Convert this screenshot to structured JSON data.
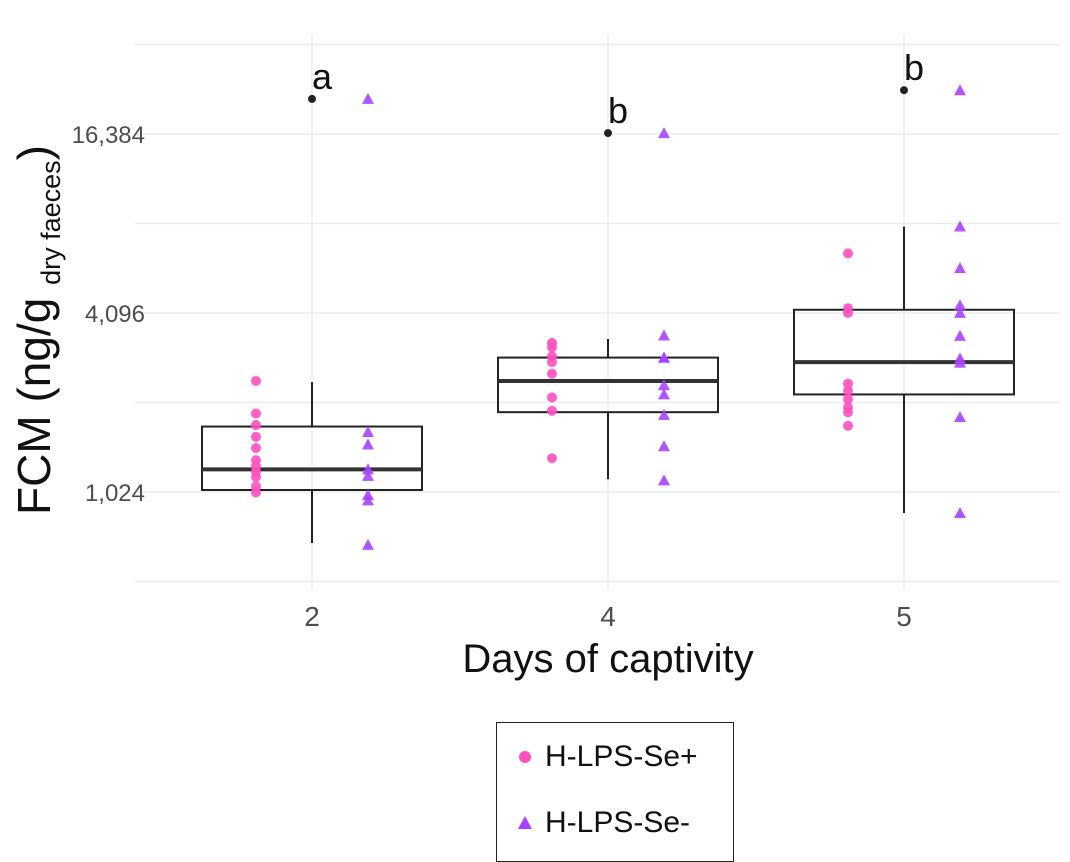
{
  "chart_data": {
    "type": "box",
    "title": "",
    "xlabel": "Days of captivity",
    "ylabel_main": "FCM (ng/g",
    "ylabel_sub": "dry faeces",
    "ylabel_close": ")",
    "y_scale": "log2",
    "ylim": [
      640,
      26000
    ],
    "y_ticks": [
      1024,
      4096,
      16384
    ],
    "y_tick_labels": [
      "1,024",
      "4,096",
      "16,384"
    ],
    "categories": [
      "2",
      "4",
      "5"
    ],
    "grid": true,
    "boxes": [
      {
        "category": "2",
        "whisker_low": 690,
        "q1": 1040,
        "median": 1220,
        "q3": 1700,
        "whisker_high": 2400,
        "outliers": [
          21500
        ],
        "significance": "a"
      },
      {
        "category": "4",
        "whisker_low": 1130,
        "q1": 1900,
        "median": 2420,
        "q3": 2900,
        "whisker_high": 3350,
        "outliers": [
          16500
        ],
        "significance": "b"
      },
      {
        "category": "5",
        "whisker_low": 870,
        "q1": 2180,
        "median": 2800,
        "q3": 4200,
        "whisker_high": 8000,
        "outliers": [
          23000
        ],
        "significance": "b"
      }
    ],
    "series": [
      {
        "name": "H-LPS-Se+",
        "color": "#ff4fc0",
        "marker": "circle",
        "points": [
          {
            "x": "2",
            "values": [
              2420,
              1880,
              1720,
              1570,
              1440,
              1310,
              1250,
              1200,
              1150,
              1070,
              1020
            ]
          },
          {
            "x": "4",
            "values": [
              3250,
              3140,
              2930,
              2800,
              2560,
              2130,
              1920,
              1330
            ]
          },
          {
            "x": "5",
            "values": [
              6500,
              4250,
              4100,
              2370,
              2240,
              2100,
              1970,
              1900,
              1710
            ]
          }
        ]
      },
      {
        "name": "H-LPS-Se-",
        "color": "#a742ff",
        "marker": "triangle",
        "points": [
          {
            "x": "2",
            "values": [
              21500,
              1630,
              1480,
              1220,
              1160,
              1000,
              960,
              680
            ]
          },
          {
            "x": "4",
            "values": [
              16500,
              3440,
              2900,
              2900,
              2340,
              2180,
              1860,
              1460,
              1120
            ]
          },
          {
            "x": "5",
            "values": [
              23000,
              8000,
              5800,
              4350,
              4100,
              3430,
              2880,
              2790,
              1830,
              870
            ]
          }
        ]
      }
    ],
    "legend": {
      "position": "bottom",
      "entries": [
        "H-LPS-Se+",
        "H-LPS-Se-"
      ]
    }
  }
}
